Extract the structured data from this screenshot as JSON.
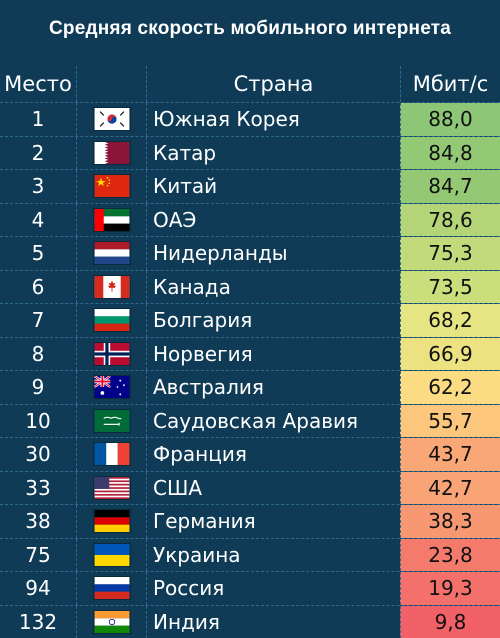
{
  "title": "Средняя скорость мобильного интернета",
  "columns": {
    "place": "Место",
    "country": "Страна",
    "speed": "Мбит/с"
  },
  "chart_data": {
    "type": "table",
    "title": "Средняя скорость мобильного интернета",
    "columns": [
      "Место",
      "Страна",
      "Мбит/с"
    ],
    "rows": [
      {
        "place": "1",
        "country": "Южная Корея",
        "speed": "88,0",
        "flag": "south-korea-flag-icon",
        "color": "#8cc676"
      },
      {
        "place": "2",
        "country": "Катар",
        "speed": "84,8",
        "flag": "qatar-flag-icon",
        "color": "#93c874"
      },
      {
        "place": "3",
        "country": "Китай",
        "speed": "84,7",
        "flag": "china-flag-icon",
        "color": "#94c874"
      },
      {
        "place": "4",
        "country": "ОАЭ",
        "speed": "78,6",
        "flag": "uae-flag-icon",
        "color": "#b3d577"
      },
      {
        "place": "5",
        "country": "Нидерланды",
        "speed": "75,3",
        "flag": "netherlands-flag-icon",
        "color": "#c3da7a"
      },
      {
        "place": "6",
        "country": "Канада",
        "speed": "73,5",
        "flag": "canada-flag-icon",
        "color": "#cade7b"
      },
      {
        "place": "7",
        "country": "Болгария",
        "speed": "68,2",
        "flag": "bulgaria-flag-icon",
        "color": "#e6e584"
      },
      {
        "place": "8",
        "country": "Норвегия",
        "speed": "66,9",
        "flag": "norway-flag-icon",
        "color": "#ede282"
      },
      {
        "place": "9",
        "country": "Австралия",
        "speed": "62,2",
        "flag": "australia-flag-icon",
        "color": "#fbdc82"
      },
      {
        "place": "10",
        "country": "Саудовская Аравия",
        "speed": "55,7",
        "flag": "saudi-arabia-flag-icon",
        "color": "#fcc77d"
      },
      {
        "place": "30",
        "country": "Франция",
        "speed": "43,7",
        "flag": "france-flag-icon",
        "color": "#f9a776"
      },
      {
        "place": "33",
        "country": "США",
        "speed": "42,7",
        "flag": "usa-flag-icon",
        "color": "#f9a476"
      },
      {
        "place": "38",
        "country": "Германия",
        "speed": "38,3",
        "flag": "germany-flag-icon",
        "color": "#f79872"
      },
      {
        "place": "75",
        "country": "Украина",
        "speed": "23,8",
        "flag": "ukraine-flag-icon",
        "color": "#f47a6c"
      },
      {
        "place": "94",
        "country": "Россия",
        "speed": "19,3",
        "flag": "russia-flag-icon",
        "color": "#f3716a"
      },
      {
        "place": "132",
        "country": "Индия",
        "speed": "9,8",
        "flag": "india-flag-icon",
        "color": "#f26168"
      }
    ]
  }
}
